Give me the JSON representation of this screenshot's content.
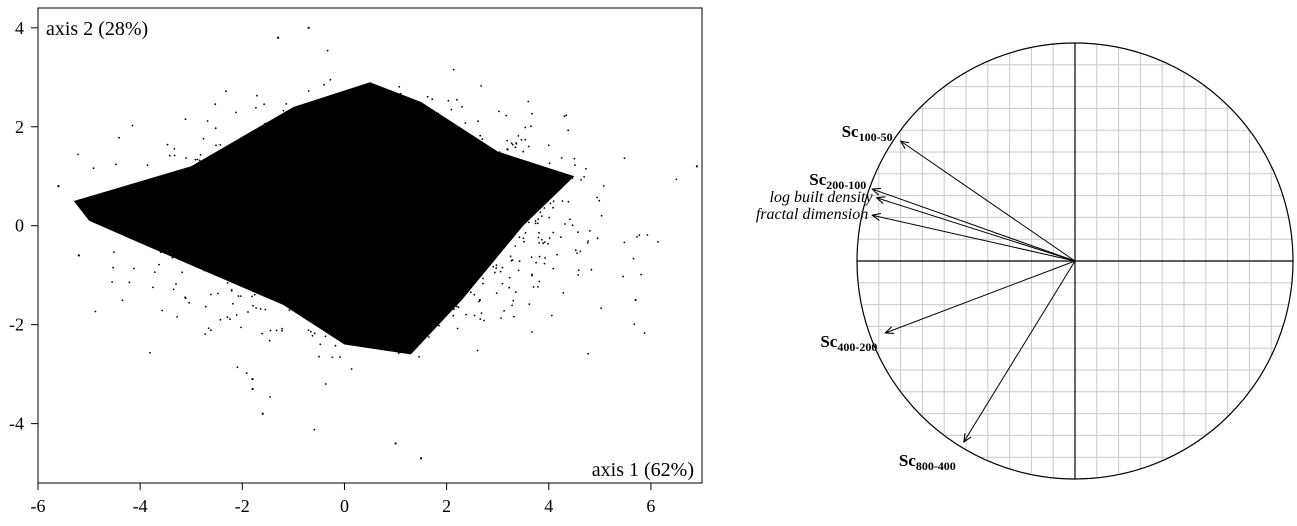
{
  "chart_data": [
    {
      "type": "scatter",
      "title": "",
      "xlabel": "axis 1 (62%)",
      "ylabel": "axis 2 (28%)",
      "xlim": [
        -6,
        7
      ],
      "ylim": [
        -5.2,
        4.4
      ],
      "xticks": [
        -6,
        -4,
        -2,
        0,
        2,
        4,
        6
      ],
      "yticks": [
        -4,
        -2,
        0,
        2,
        4
      ],
      "tick_labels_x": [
        "-6",
        "-4",
        "-2",
        "0",
        "2",
        "4",
        "6"
      ],
      "tick_labels_y": [
        "-4",
        "-2",
        "0",
        "2",
        "4"
      ],
      "grid": false,
      "point_color": "#000000",
      "points_note_free": true,
      "dense_core": [
        {
          "x": -5.3,
          "y": 0.5
        },
        {
          "x": -3.0,
          "y": 1.2
        },
        {
          "x": -1.0,
          "y": 2.4
        },
        {
          "x": 0.5,
          "y": 2.9
        },
        {
          "x": 1.5,
          "y": 2.5
        },
        {
          "x": 3.0,
          "y": 1.5
        },
        {
          "x": 4.5,
          "y": 1.0
        },
        {
          "x": 3.5,
          "y": 0.0
        },
        {
          "x": 2.3,
          "y": -1.5
        },
        {
          "x": 1.3,
          "y": -2.6
        },
        {
          "x": 0.0,
          "y": -2.4
        },
        {
          "x": -1.2,
          "y": -1.6
        },
        {
          "x": -3.0,
          "y": -0.8
        },
        {
          "x": -5.0,
          "y": 0.1
        }
      ],
      "outliers": [
        {
          "x": 1.0,
          "y": -4.4
        },
        {
          "x": 1.5,
          "y": -4.7
        },
        {
          "x": -1.6,
          "y": -3.8
        },
        {
          "x": -1.8,
          "y": -3.3
        },
        {
          "x": -1.8,
          "y": -3.1
        },
        {
          "x": -0.7,
          "y": 4.0
        },
        {
          "x": -1.3,
          "y": 3.8
        },
        {
          "x": 6.9,
          "y": 1.2
        },
        {
          "x": 5.7,
          "y": -1.5
        },
        {
          "x": -5.6,
          "y": 0.8
        },
        {
          "x": -5.2,
          "y": -0.6
        }
      ]
    },
    {
      "type": "correlation-circle",
      "title": "",
      "xlim": [
        -1,
        1
      ],
      "ylim": [
        -1,
        1
      ],
      "grid": true,
      "variables": [
        {
          "label_main": "Sc",
          "label_sub": "100-50",
          "style": "bold",
          "x": -0.8,
          "y": 0.55
        },
        {
          "label_main": "Sc",
          "label_sub": "200-100",
          "style": "bold",
          "x": -0.93,
          "y": 0.33
        },
        {
          "label_main": "log built density",
          "label_sub": "",
          "style": "italic",
          "x": -0.91,
          "y": 0.29
        },
        {
          "label_main": "fractal dimension",
          "label_sub": "",
          "style": "italic",
          "x": -0.93,
          "y": 0.21
        },
        {
          "label_main": "Sc",
          "label_sub": "400-200",
          "style": "bold",
          "x": -0.87,
          "y": -0.33
        },
        {
          "label_main": "Sc",
          "label_sub": "800-400",
          "style": "bold",
          "x": -0.51,
          "y": -0.83
        }
      ]
    }
  ],
  "colors": {
    "points": "#000000",
    "grid": "#c8c8c8",
    "axes": "#000000"
  }
}
